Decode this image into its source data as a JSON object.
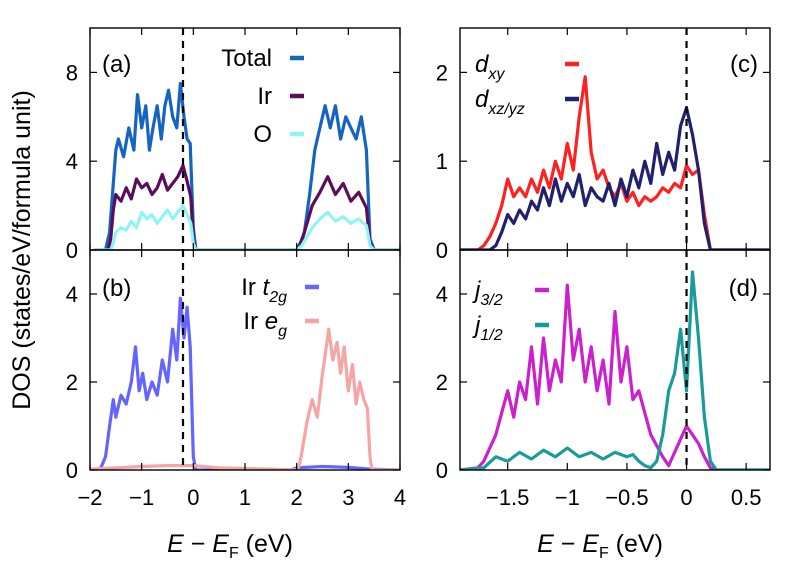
{
  "ylabel": "DOS (states/eV/formula unit)",
  "xlabel_left": {
    "E": "E",
    "minus": " − ",
    "EF": "E",
    "F_sub": "F",
    "unit": " (eV)"
  },
  "xlabel_right": {
    "E": "E",
    "minus": " − ",
    "EF": "E",
    "F_sub": "F",
    "unit": " (eV)"
  },
  "colors": {
    "total": "#1565c0",
    "ir": "#5a0d5a",
    "o": "#8ef5f5",
    "t2g": "#6464ff",
    "eg": "#f5a5a5",
    "dxy": "#ff2020",
    "dxzyz": "#20206e",
    "j32": "#cc20cc",
    "j12": "#1a9a9a"
  },
  "chart_data": [
    {
      "id": "a",
      "panel_label": "(a)",
      "type": "line",
      "xlim": [
        -2,
        4
      ],
      "ylim": [
        0,
        10
      ],
      "yticks": [
        0,
        4,
        8
      ],
      "ytick_labels": [
        "0",
        "4",
        "8"
      ],
      "xticks": [
        -2,
        -1,
        0,
        1,
        2,
        3,
        4
      ],
      "xtick_labels": [],
      "fermi_line": -0.2,
      "legend": [
        {
          "label": "Total",
          "color_key": "total"
        },
        {
          "label": "Ir",
          "color_key": "ir"
        },
        {
          "label": "O",
          "color_key": "o"
        }
      ],
      "series": [
        {
          "name": "Total",
          "color_key": "total",
          "x": [
            -1.9,
            -1.7,
            -1.62,
            -1.55,
            -1.5,
            -1.45,
            -1.35,
            -1.25,
            -1.15,
            -1.08,
            -1.0,
            -0.92,
            -0.85,
            -0.78,
            -0.7,
            -0.62,
            -0.55,
            -0.48,
            -0.4,
            -0.32,
            -0.25,
            -0.18,
            -0.12,
            -0.06,
            0.0,
            0.05,
            0.1,
            1.9,
            2.0,
            2.05,
            2.15,
            2.25,
            2.35,
            2.45,
            2.55,
            2.65,
            2.75,
            2.85,
            2.95,
            3.05,
            3.15,
            3.25,
            3.35,
            3.42,
            3.5,
            4.0
          ],
          "y": [
            0,
            0,
            0.8,
            3.0,
            4.5,
            5.0,
            4.2,
            5.5,
            4.5,
            7.0,
            5.5,
            6.5,
            4.5,
            5.5,
            6.5,
            5.0,
            6.5,
            7.2,
            6.0,
            5.5,
            7.5,
            6.0,
            5.0,
            4.8,
            1.0,
            0,
            0,
            0,
            0,
            0.2,
            0.8,
            2.5,
            4.5,
            5.5,
            6.5,
            5.5,
            6.5,
            5.0,
            6.0,
            5.5,
            5.0,
            6.0,
            4.5,
            0.5,
            0,
            0
          ]
        },
        {
          "name": "Ir",
          "color_key": "ir",
          "x": [
            -1.9,
            -1.65,
            -1.6,
            -1.55,
            -1.5,
            -1.4,
            -1.3,
            -1.2,
            -1.1,
            -1.0,
            -0.9,
            -0.8,
            -0.7,
            -0.6,
            -0.5,
            -0.4,
            -0.3,
            -0.2,
            -0.12,
            -0.05,
            0.0,
            0.05,
            0.1,
            1.9,
            2.0,
            2.1,
            2.2,
            2.3,
            2.45,
            2.6,
            2.75,
            2.9,
            3.05,
            3.2,
            3.35,
            3.42,
            3.5,
            4.0
          ],
          "y": [
            0,
            0,
            0.5,
            1.8,
            2.5,
            2.2,
            2.8,
            2.3,
            3.2,
            2.8,
            3.0,
            2.5,
            2.8,
            3.4,
            2.7,
            3.0,
            3.3,
            3.8,
            3.1,
            2.4,
            0.5,
            0,
            0,
            0,
            0,
            0.4,
            1.2,
            2.0,
            2.6,
            3.3,
            2.5,
            3.0,
            2.2,
            2.6,
            1.9,
            0.3,
            0,
            0
          ]
        },
        {
          "name": "O",
          "color_key": "o",
          "x": [
            -1.9,
            -1.6,
            -1.55,
            -1.5,
            -1.4,
            -1.3,
            -1.2,
            -1.1,
            -1.0,
            -0.9,
            -0.8,
            -0.7,
            -0.6,
            -0.5,
            -0.4,
            -0.3,
            -0.2,
            -0.12,
            -0.05,
            0.0,
            0.05,
            0.1,
            1.9,
            2.0,
            2.1,
            2.2,
            2.3,
            2.45,
            2.6,
            2.75,
            2.9,
            3.05,
            3.2,
            3.35,
            3.42,
            3.5,
            4.0
          ],
          "y": [
            0,
            0,
            0.3,
            0.8,
            1.0,
            0.9,
            1.3,
            1.0,
            1.7,
            1.4,
            1.6,
            1.2,
            1.5,
            1.8,
            1.4,
            1.7,
            2.0,
            1.6,
            1.2,
            0.3,
            0,
            0,
            0,
            0,
            0.2,
            0.6,
            1.0,
            1.4,
            1.7,
            1.3,
            1.5,
            1.2,
            1.4,
            1.1,
            0.2,
            0,
            0
          ]
        }
      ]
    },
    {
      "id": "b",
      "panel_label": "(b)",
      "type": "line",
      "xlim": [
        -2,
        4
      ],
      "ylim": [
        0,
        5
      ],
      "yticks": [
        0,
        2,
        4
      ],
      "ytick_labels": [
        "0",
        "2",
        "4"
      ],
      "xticks": [
        -2,
        -1,
        0,
        1,
        2,
        3,
        4
      ],
      "xtick_labels": [
        "−2",
        "−1",
        "0",
        "1",
        "2",
        "3",
        "4"
      ],
      "fermi_line": -0.2,
      "legend": [
        {
          "label": "Ir t",
          "sub": "2g",
          "color_key": "t2g"
        },
        {
          "label": "Ir e",
          "sub": "g",
          "color_key": "eg"
        }
      ],
      "series": [
        {
          "name": "Ir t2g",
          "color_key": "t2g",
          "x": [
            -2.0,
            -1.8,
            -1.7,
            -1.62,
            -1.55,
            -1.5,
            -1.4,
            -1.3,
            -1.2,
            -1.12,
            -1.05,
            -0.98,
            -0.9,
            -0.8,
            -0.7,
            -0.6,
            -0.5,
            -0.4,
            -0.32,
            -0.25,
            -0.18,
            -0.12,
            -0.06,
            0.0,
            0.05,
            0.1,
            1.9,
            2.0,
            2.5,
            3.0,
            3.4,
            4.0
          ],
          "y": [
            0,
            0.02,
            0.3,
            1.0,
            1.6,
            1.2,
            1.7,
            1.5,
            2.0,
            2.8,
            1.8,
            2.2,
            1.6,
            2.0,
            1.7,
            2.5,
            2.0,
            3.2,
            2.5,
            3.9,
            3.0,
            3.7,
            2.8,
            0.3,
            0,
            0,
            0,
            0.05,
            0.08,
            0.06,
            0.02,
            0
          ]
        },
        {
          "name": "Ir eg",
          "color_key": "eg",
          "x": [
            -2.0,
            -1.5,
            -1.0,
            -0.5,
            0.0,
            0.5,
            1.5,
            2.0,
            2.05,
            2.1,
            2.2,
            2.3,
            2.4,
            2.5,
            2.55,
            2.62,
            2.7,
            2.78,
            2.85,
            2.92,
            3.0,
            3.08,
            3.15,
            3.22,
            3.3,
            3.37,
            3.42,
            3.45,
            3.5,
            4.0
          ],
          "y": [
            0.02,
            0.05,
            0.08,
            0.1,
            0.1,
            0.05,
            0.02,
            0,
            0.1,
            0.4,
            1.1,
            1.6,
            1.2,
            2.2,
            2.6,
            3.2,
            2.5,
            2.9,
            2.2,
            2.8,
            1.8,
            2.4,
            1.5,
            2.0,
            1.6,
            1.4,
            0.3,
            0.05,
            0,
            0
          ]
        }
      ]
    },
    {
      "id": "c",
      "panel_label": "(c)",
      "type": "line",
      "xlim": [
        -1.9,
        0.7
      ],
      "ylim": [
        0,
        2.5
      ],
      "yticks": [
        0,
        1,
        2
      ],
      "ytick_labels": [
        "0",
        "1",
        "2"
      ],
      "xticks": [
        -1.5,
        -1,
        -0.5,
        0,
        0.5
      ],
      "xtick_labels": [],
      "fermi_line": 0,
      "legend": [
        {
          "label": "d",
          "sub": "xy",
          "color_key": "dxy"
        },
        {
          "label": "d",
          "sub": "xz/yz",
          "color_key": "dxzyz"
        }
      ],
      "series": [
        {
          "name": "dxy",
          "color_key": "dxy",
          "x": [
            -1.9,
            -1.75,
            -1.7,
            -1.65,
            -1.6,
            -1.55,
            -1.5,
            -1.45,
            -1.4,
            -1.35,
            -1.3,
            -1.25,
            -1.2,
            -1.15,
            -1.1,
            -1.05,
            -1.0,
            -0.95,
            -0.9,
            -0.85,
            -0.8,
            -0.75,
            -0.7,
            -0.65,
            -0.6,
            -0.55,
            -0.5,
            -0.45,
            -0.4,
            -0.35,
            -0.3,
            -0.25,
            -0.2,
            -0.15,
            -0.1,
            -0.05,
            0.0,
            0.05,
            0.1,
            0.15,
            0.2,
            0.25,
            0.7
          ],
          "y": [
            0,
            0,
            0.05,
            0.15,
            0.3,
            0.5,
            0.8,
            0.6,
            0.7,
            0.6,
            0.8,
            0.65,
            0.9,
            0.7,
            1.0,
            0.8,
            1.2,
            0.9,
            1.5,
            1.95,
            1.1,
            0.8,
            0.9,
            0.7,
            0.6,
            0.75,
            0.55,
            0.65,
            0.5,
            0.6,
            0.55,
            0.6,
            0.7,
            0.65,
            0.75,
            0.7,
            0.95,
            0.85,
            0.9,
            0.4,
            0,
            0,
            0
          ]
        },
        {
          "name": "dxz/yz",
          "color_key": "dxzyz",
          "x": [
            -1.9,
            -1.65,
            -1.6,
            -1.55,
            -1.5,
            -1.45,
            -1.4,
            -1.35,
            -1.3,
            -1.25,
            -1.2,
            -1.15,
            -1.1,
            -1.05,
            -1.0,
            -0.95,
            -0.9,
            -0.85,
            -0.8,
            -0.75,
            -0.7,
            -0.65,
            -0.6,
            -0.55,
            -0.5,
            -0.45,
            -0.4,
            -0.35,
            -0.3,
            -0.25,
            -0.2,
            -0.15,
            -0.1,
            -0.05,
            0.0,
            0.05,
            0.1,
            0.15,
            0.2,
            0.25,
            0.7
          ],
          "y": [
            0,
            0,
            0.05,
            0.2,
            0.4,
            0.3,
            0.45,
            0.35,
            0.55,
            0.45,
            0.7,
            0.5,
            0.8,
            0.55,
            0.75,
            0.6,
            0.85,
            0.5,
            0.7,
            0.6,
            0.55,
            0.75,
            0.5,
            0.8,
            0.6,
            0.9,
            0.7,
            1.0,
            0.75,
            1.2,
            0.85,
            1.1,
            0.9,
            1.4,
            1.6,
            1.3,
            0.9,
            0.3,
            0,
            0,
            0
          ]
        }
      ]
    },
    {
      "id": "d",
      "panel_label": "(d)",
      "type": "line",
      "xlim": [
        -1.9,
        0.7
      ],
      "ylim": [
        0,
        5
      ],
      "yticks": [
        0,
        2,
        4
      ],
      "ytick_labels": [
        "0",
        "2",
        "4"
      ],
      "xticks": [
        -1.5,
        -1,
        -0.5,
        0,
        0.5
      ],
      "xtick_labels": [
        "−1.5",
        "−1",
        "−0.5",
        "0",
        "0.5"
      ],
      "fermi_line": 0,
      "legend": [
        {
          "label": "j",
          "sub": "3/2",
          "color_key": "j32"
        },
        {
          "label": "j",
          "sub": "1/2",
          "color_key": "j12"
        }
      ],
      "series": [
        {
          "name": "j3/2",
          "color_key": "j32",
          "x": [
            -1.9,
            -1.75,
            -1.7,
            -1.65,
            -1.6,
            -1.55,
            -1.5,
            -1.45,
            -1.4,
            -1.35,
            -1.3,
            -1.25,
            -1.2,
            -1.15,
            -1.1,
            -1.05,
            -1.0,
            -0.95,
            -0.9,
            -0.85,
            -0.8,
            -0.75,
            -0.7,
            -0.65,
            -0.6,
            -0.55,
            -0.5,
            -0.45,
            -0.4,
            -0.3,
            -0.2,
            -0.15,
            -0.1,
            -0.05,
            0.0,
            0.05,
            0.1,
            0.15,
            0.2,
            0.25,
            0.7
          ],
          "y": [
            0,
            0.05,
            0.2,
            0.5,
            0.8,
            1.3,
            1.8,
            1.2,
            2.0,
            1.6,
            2.8,
            1.5,
            3.0,
            1.8,
            2.5,
            2.0,
            4.2,
            2.5,
            3.2,
            2.0,
            2.8,
            1.8,
            2.5,
            1.5,
            3.6,
            2.0,
            2.8,
            1.6,
            1.8,
            0.8,
            0.3,
            0.1,
            0.4,
            0.7,
            1.0,
            0.8,
            0.6,
            0.3,
            0.05,
            0,
            0
          ]
        },
        {
          "name": "j1/2",
          "color_key": "j12",
          "x": [
            -1.9,
            -1.7,
            -1.6,
            -1.5,
            -1.4,
            -1.3,
            -1.2,
            -1.1,
            -1.0,
            -0.9,
            -0.8,
            -0.7,
            -0.6,
            -0.5,
            -0.45,
            -0.4,
            -0.35,
            -0.3,
            -0.25,
            -0.2,
            -0.15,
            -0.1,
            -0.05,
            0.0,
            0.05,
            0.1,
            0.15,
            0.2,
            0.25,
            0.7
          ],
          "y": [
            0,
            0.05,
            0.3,
            0.2,
            0.4,
            0.25,
            0.45,
            0.3,
            0.5,
            0.3,
            0.4,
            0.25,
            0.4,
            0.3,
            0.35,
            0.2,
            0.1,
            0.05,
            0.2,
            0.8,
            1.8,
            2.2,
            3.2,
            1.8,
            4.5,
            3.0,
            1.2,
            0.2,
            0,
            0
          ]
        }
      ]
    }
  ]
}
